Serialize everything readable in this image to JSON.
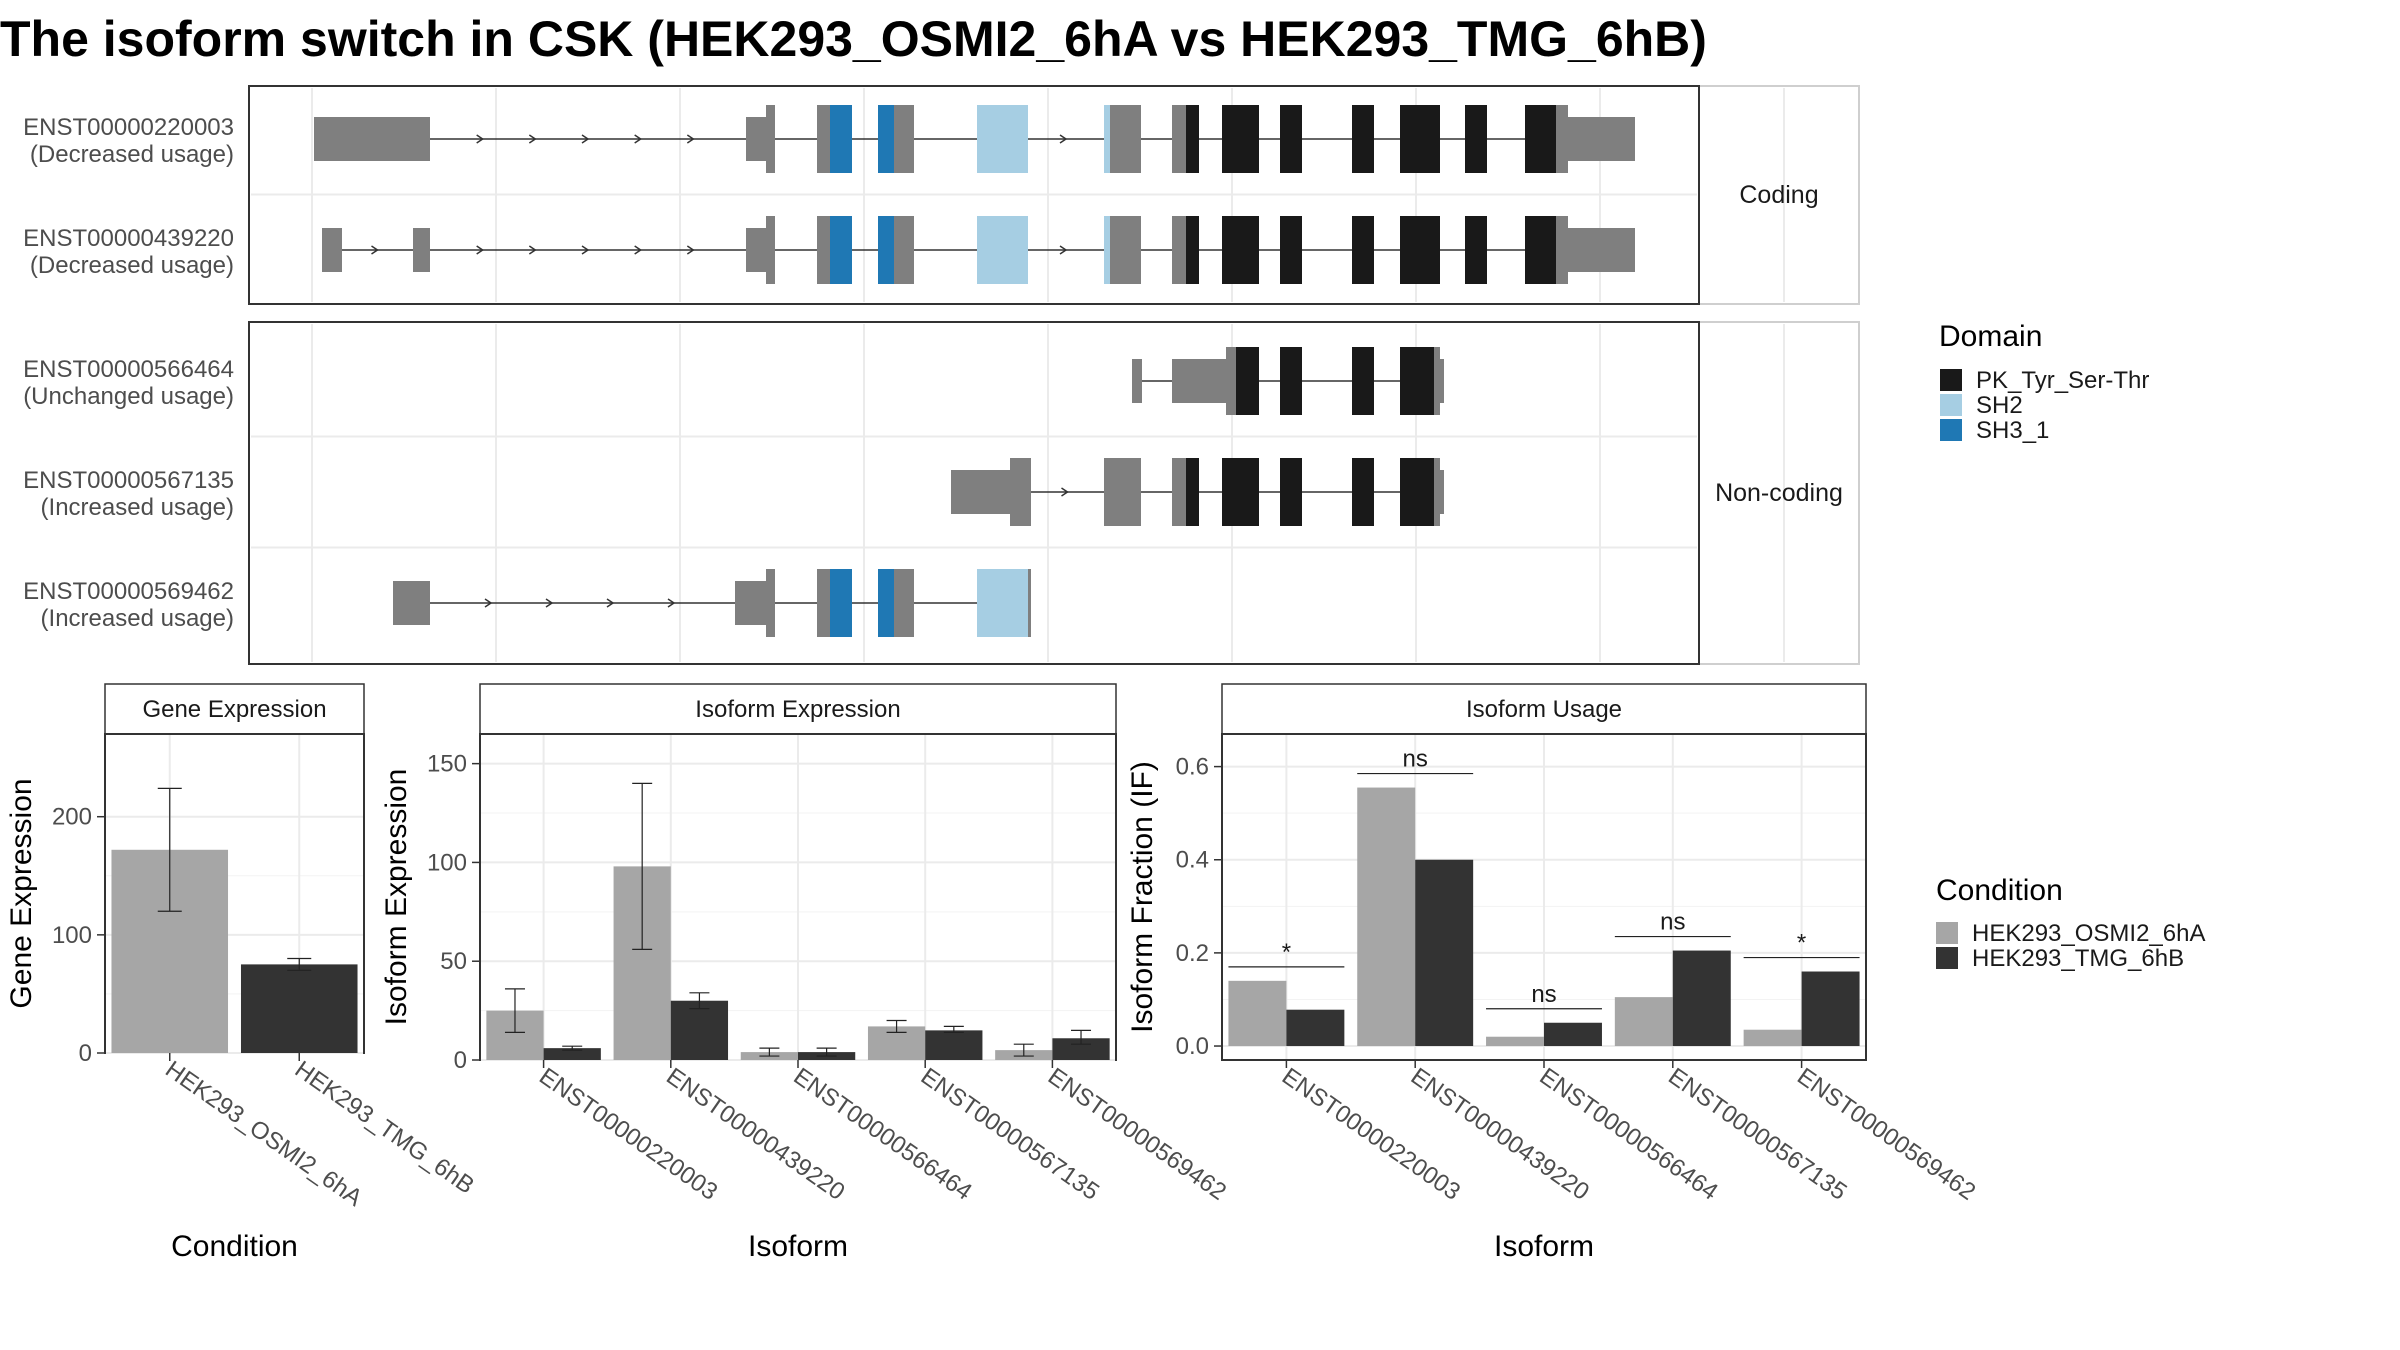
{
  "title": "The isoform switch in CSK (HEK293_OSMI2_6hA vs HEK293_TMG_6hB)",
  "transcript_panel": {
    "groups": [
      {
        "label": "Coding",
        "transcripts": [
          {
            "id": "ENST00000220003",
            "usage": "(Decreased usage)"
          },
          {
            "id": "ENST00000439220",
            "usage": "(Decreased usage)"
          }
        ]
      },
      {
        "label": "Non-coding",
        "transcripts": [
          {
            "id": "ENST00000566464",
            "usage": "(Unchanged usage)"
          },
          {
            "id": "ENST00000567135",
            "usage": "(Increased usage)"
          },
          {
            "id": "ENST00000569462",
            "usage": "(Increased usage)"
          }
        ]
      }
    ]
  },
  "domain_legend": {
    "title": "Domain",
    "items": [
      {
        "label": "PK_Tyr_Ser-Thr",
        "color": "#191919"
      },
      {
        "label": "SH2",
        "color": "#a6cee3"
      },
      {
        "label": "SH3_1",
        "color": "#1f78b4"
      }
    ]
  },
  "condition_legend": {
    "title": "Condition",
    "items": [
      {
        "label": "HEK293_OSMI2_6hA",
        "color": "#a6a6a6"
      },
      {
        "label": "HEK293_TMG_6hB",
        "color": "#333333"
      }
    ]
  },
  "chart_data": [
    {
      "type": "bar",
      "title": "Gene Expression",
      "xlabel": "Condition",
      "ylabel": "Gene Expression",
      "ylim": [
        0,
        270
      ],
      "yticks": [
        0,
        100,
        200
      ],
      "categories": [
        "HEK293_OSMI2_6hA",
        "HEK293_TMG_6hB"
      ],
      "values": [
        172,
        75
      ],
      "errors": [
        [
          120,
          224
        ],
        [
          70,
          80
        ]
      ],
      "colors": [
        "#a6a6a6",
        "#333333"
      ]
    },
    {
      "type": "bar",
      "title": "Isoform Expression",
      "xlabel": "Isoform",
      "ylabel": "Isoform Expression",
      "ylim": [
        0,
        165
      ],
      "yticks": [
        0,
        50,
        100,
        150
      ],
      "categories": [
        "ENST00000220003",
        "ENST00000439220",
        "ENST00000566464",
        "ENST00000567135",
        "ENST00000569462"
      ],
      "series": [
        {
          "name": "HEK293_OSMI2_6hA",
          "values": [
            25,
            98,
            4,
            17,
            5
          ],
          "errors": [
            [
              14,
              36
            ],
            [
              56,
              140
            ],
            [
              2,
              6
            ],
            [
              14,
              20
            ],
            [
              2,
              8
            ]
          ]
        },
        {
          "name": "HEK293_TMG_6hB",
          "values": [
            6,
            30,
            4,
            15,
            11
          ],
          "errors": [
            [
              5,
              7
            ],
            [
              26,
              34
            ],
            [
              2,
              6
            ],
            [
              14,
              17
            ],
            [
              8,
              15
            ]
          ]
        }
      ]
    },
    {
      "type": "bar",
      "title": "Isoform Usage",
      "xlabel": "Isoform",
      "ylabel": "Isoform Fraction (IF)",
      "ylim": [
        -0.03,
        0.67
      ],
      "yticks": [
        0.0,
        0.2,
        0.4,
        0.6
      ],
      "ytick_labels": [
        "0.0",
        "0.2",
        "0.4",
        "0.6"
      ],
      "categories": [
        "ENST00000220003",
        "ENST00000439220",
        "ENST00000566464",
        "ENST00000567135",
        "ENST00000569462"
      ],
      "series": [
        {
          "name": "HEK293_OSMI2_6hA",
          "values": [
            0.14,
            0.555,
            0.02,
            0.105,
            0.035
          ]
        },
        {
          "name": "HEK293_TMG_6hB",
          "values": [
            0.078,
            0.4,
            0.05,
            0.205,
            0.16
          ]
        }
      ],
      "significance": [
        {
          "label": "*",
          "y": 0.17
        },
        {
          "label": "ns",
          "y": 0.585
        },
        {
          "label": "ns",
          "y": 0.08
        },
        {
          "label": "ns",
          "y": 0.235
        },
        {
          "label": "*",
          "y": 0.19
        }
      ]
    }
  ]
}
